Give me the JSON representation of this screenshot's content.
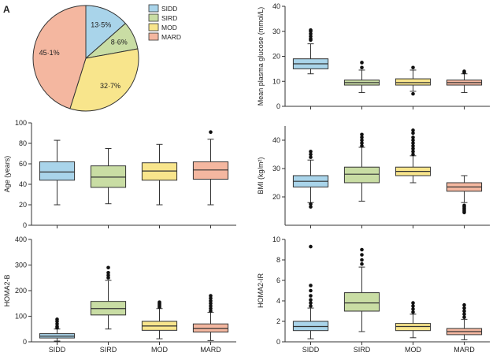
{
  "panel_label": "A",
  "colors": {
    "SIDD": "#a9d4ea",
    "SIRD": "#c9dda4",
    "MOD": "#f8e58c",
    "MARD": "#f4b7a0",
    "stroke": "#333333"
  },
  "chart_data": [
    {
      "type": "pie",
      "slices": [
        {
          "label": "SIDD",
          "value": 13.5,
          "display": "13·5%"
        },
        {
          "label": "SIRD",
          "value": 8.6,
          "display": "8·6%"
        },
        {
          "label": "MOD",
          "value": 32.7,
          "display": "32·7%"
        },
        {
          "label": "MARD",
          "value": 45.1,
          "display": "45·1%"
        }
      ],
      "legend": [
        "SIDD",
        "SIRD",
        "MOD",
        "MARD"
      ],
      "legend_placement": "right"
    },
    {
      "type": "box",
      "ylabel": "Mean plasma glucose (mmol/L)",
      "ylim": [
        0,
        40
      ],
      "yticks": [
        0,
        10,
        20,
        30,
        40
      ],
      "show_xticklabels": false,
      "categories": [
        "SIDD",
        "SIRD",
        "MOD",
        "MARD"
      ],
      "boxes": [
        {
          "whisker_low": 13,
          "q1": 15,
          "median": 17,
          "q3": 19,
          "whisker_high": 25,
          "outliers": [
            26.5,
            27,
            28,
            29,
            30,
            30.5
          ]
        },
        {
          "whisker_low": 5.5,
          "q1": 8.5,
          "median": 9.5,
          "q3": 10.5,
          "whisker_high": 14.5,
          "outliers": [
            15.5,
            17.5
          ]
        },
        {
          "whisker_low": 6,
          "q1": 8.5,
          "median": 9.5,
          "q3": 11,
          "whisker_high": 14.5,
          "outliers": [
            5,
            15.5
          ]
        },
        {
          "whisker_low": 5.5,
          "q1": 8.5,
          "median": 9.5,
          "q3": 10.5,
          "whisker_high": 13,
          "outliers": [
            13.5,
            14
          ]
        }
      ]
    },
    {
      "type": "box",
      "ylabel": "Age (years)",
      "ylim": [
        0,
        100
      ],
      "yticks": [
        0,
        20,
        40,
        60,
        80,
        100
      ],
      "show_xticklabels": false,
      "categories": [
        "SIDD",
        "SIRD",
        "MOD",
        "MARD"
      ],
      "boxes": [
        {
          "whisker_low": 20,
          "q1": 44,
          "median": 52,
          "q3": 62,
          "whisker_high": 83,
          "outliers": []
        },
        {
          "whisker_low": 21,
          "q1": 37,
          "median": 47,
          "q3": 58,
          "whisker_high": 75,
          "outliers": []
        },
        {
          "whisker_low": 20,
          "q1": 44,
          "median": 53,
          "q3": 61,
          "whisker_high": 79,
          "outliers": []
        },
        {
          "whisker_low": 20,
          "q1": 45,
          "median": 54,
          "q3": 62,
          "whisker_high": 84,
          "outliers": [
            91
          ]
        }
      ]
    },
    {
      "type": "box",
      "ylabel": "BMI (kg/m²)",
      "ylim": [
        10,
        45
      ],
      "yticks": [
        20,
        30,
        40
      ],
      "show_xticklabels": false,
      "categories": [
        "SIDD",
        "SIRD",
        "MOD",
        "MARD"
      ],
      "boxes": [
        {
          "whisker_low": 18,
          "q1": 23.5,
          "median": 25.5,
          "q3": 27.5,
          "whisker_high": 33,
          "outliers": [
            16.5,
            17.5,
            34,
            35,
            36
          ]
        },
        {
          "whisker_low": 18.5,
          "q1": 25,
          "median": 28,
          "q3": 30.5,
          "whisker_high": 37.5,
          "outliers": [
            38,
            39,
            40,
            41,
            42
          ]
        },
        {
          "whisker_low": 25,
          "q1": 27.5,
          "median": 29,
          "q3": 30.5,
          "whisker_high": 34.5,
          "outliers": [
            35,
            36,
            37,
            38,
            39,
            40,
            41,
            42.5,
            43.5
          ]
        },
        {
          "whisker_low": 18,
          "q1": 22,
          "median": 23.5,
          "q3": 25,
          "whisker_high": 27.5,
          "outliers": [
            14.5,
            15,
            15.5,
            16,
            16.5,
            17
          ]
        }
      ]
    },
    {
      "type": "box",
      "ylabel": "HOMA2-B",
      "ylim": [
        0,
        400
      ],
      "yticks": [
        0,
        100,
        200,
        300,
        400
      ],
      "show_xticklabels": true,
      "categories": [
        "SIDD",
        "SIRD",
        "MOD",
        "MARD"
      ],
      "boxes": [
        {
          "whisker_low": 3,
          "q1": 15,
          "median": 22,
          "q3": 32,
          "whisker_high": 50,
          "outliers": [
            55,
            60,
            70,
            80,
            88
          ]
        },
        {
          "whisker_low": 50,
          "q1": 105,
          "median": 130,
          "q3": 158,
          "whisker_high": 240,
          "outliers": [
            250,
            260,
            270,
            290
          ]
        },
        {
          "whisker_low": 12,
          "q1": 45,
          "median": 62,
          "q3": 80,
          "whisker_high": 130,
          "outliers": [
            135,
            140,
            145,
            150,
            155
          ]
        },
        {
          "whisker_low": 5,
          "q1": 38,
          "median": 52,
          "q3": 70,
          "whisker_high": 115,
          "outliers": [
            120,
            130,
            140,
            150,
            160,
            170,
            180
          ]
        }
      ]
    },
    {
      "type": "box",
      "ylabel": "HOMA2-IR",
      "ylim": [
        0,
        10
      ],
      "yticks": [
        0,
        2,
        4,
        6,
        8,
        10
      ],
      "show_xticklabels": true,
      "categories": [
        "SIDD",
        "SIRD",
        "MOD",
        "MARD"
      ],
      "boxes": [
        {
          "whisker_low": 0.3,
          "q1": 1.1,
          "median": 1.5,
          "q3": 2.0,
          "whisker_high": 3.3,
          "outliers": [
            3.5,
            3.8,
            4.1,
            4.5,
            5.0,
            5.5,
            9.3
          ]
        },
        {
          "whisker_low": 1.0,
          "q1": 3.0,
          "median": 3.8,
          "q3": 4.8,
          "whisker_high": 7.3,
          "outliers": [
            7.6,
            8.0,
            8.5,
            9.0
          ]
        },
        {
          "whisker_low": 0.4,
          "q1": 1.1,
          "median": 1.5,
          "q3": 1.8,
          "whisker_high": 2.7,
          "outliers": [
            2.9,
            3.2,
            3.5,
            3.8
          ]
        },
        {
          "whisker_low": 0.2,
          "q1": 0.7,
          "median": 1.0,
          "q3": 1.3,
          "whisker_high": 2.2,
          "outliers": [
            2.4,
            2.7,
            3.0,
            3.3,
            3.6
          ]
        }
      ]
    }
  ]
}
